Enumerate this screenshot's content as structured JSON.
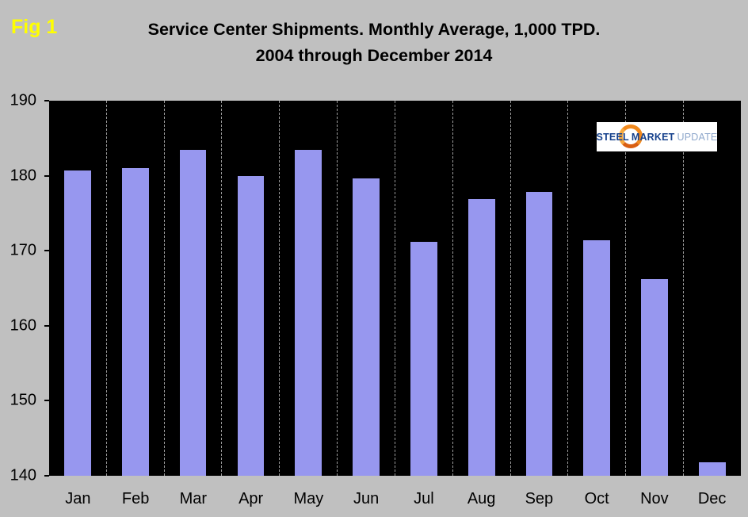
{
  "figure_label": "Fig 1",
  "title": {
    "line1": "Service Center Shipments. Monthly Average, 1,000 TPD.",
    "line2": "2004 through December 2014"
  },
  "logo": {
    "word1": "STEEL",
    "word2": "MARKET",
    "word3": "UPDATE"
  },
  "colors": {
    "background": "#c0c0c0",
    "plot_background": "#000000",
    "bar": "#9797ef",
    "figure_label": "#ffff00",
    "grid_dash": "#9a9a9a",
    "logo_orange": "#f28a1e",
    "logo_blue": "#16418c",
    "logo_light_blue": "#8fa8cc"
  },
  "chart_data": {
    "type": "bar",
    "categories": [
      "Jan",
      "Feb",
      "Mar",
      "Apr",
      "May",
      "Jun",
      "Jul",
      "Aug",
      "Sep",
      "Oct",
      "Nov",
      "Dec"
    ],
    "values": [
      180.7,
      181.0,
      183.4,
      180.0,
      183.5,
      179.6,
      171.2,
      176.9,
      177.8,
      171.4,
      166.2,
      141.8
    ],
    "title": "Service Center Shipments. Monthly Average, 1,000 TPD. 2004 through December 2014",
    "xlabel": "",
    "ylabel": "",
    "ylim": [
      140,
      190
    ],
    "yticks": [
      190,
      180,
      170,
      160,
      150,
      140
    ],
    "grid": "vertical-dashed",
    "legend": "none",
    "plot_background": "black"
  }
}
